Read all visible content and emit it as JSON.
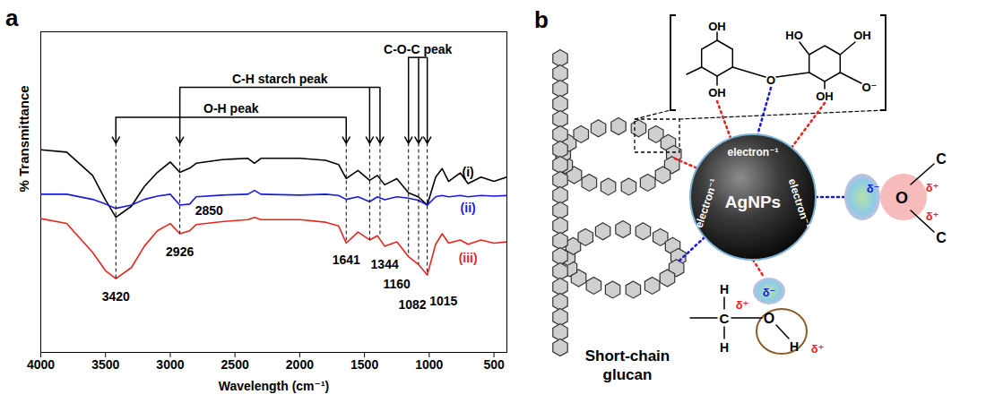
{
  "chart_data": {
    "type": "line",
    "panel_label": "a",
    "x_label": "Wavelength (cm⁻¹)",
    "y_label": "% Transmittance",
    "x": [
      4000,
      3800,
      3600,
      3500,
      3420,
      3300,
      3200,
      3100,
      3000,
      2926,
      2850,
      2800,
      2600,
      2400,
      2350,
      2300,
      2000,
      1800,
      1700,
      1641,
      1550,
      1460,
      1400,
      1344,
      1250,
      1160,
      1082,
      1015,
      950,
      900,
      850,
      760,
      700,
      600,
      500,
      400
    ],
    "series": [
      {
        "name": "(i)",
        "color": "#000000",
        "values": [
          94.8,
          93.7,
          82.8,
          71.3,
          63.2,
          68.4,
          77.6,
          84.2,
          89.1,
          84.2,
          86.2,
          88.5,
          90.2,
          90.8,
          88.5,
          90.8,
          90.8,
          89.9,
          87.9,
          81.3,
          85.1,
          80.5,
          82.8,
          78.4,
          81.3,
          74.7,
          72.7,
          69.0,
          82.0,
          86.0,
          80.0,
          84.0,
          79.0,
          82.0,
          80.0,
          82.0
        ]
      },
      {
        "name": "(ii)",
        "color": "#1a1adb",
        "values": [
          74.0,
          74.0,
          71.6,
          69.4,
          67.4,
          68.9,
          71.6,
          73.1,
          74.0,
          68.9,
          69.4,
          72.8,
          73.6,
          74.0,
          75.8,
          74.0,
          73.6,
          74.0,
          73.4,
          71.6,
          72.8,
          70.5,
          72.8,
          71.4,
          72.8,
          72.2,
          71.1,
          68.9,
          72.8,
          73.4,
          72.8,
          73.4,
          72.8,
          73.4,
          73.1,
          73.4
        ]
      },
      {
        "name": "(iii)",
        "color": "#e5261f",
        "values": [
          62.6,
          60.3,
          46.8,
          38.2,
          34.5,
          39.7,
          49.7,
          56.9,
          60.3,
          55.5,
          56.9,
          59.8,
          61.2,
          62.1,
          63.2,
          62.1,
          62.1,
          60.9,
          59.2,
          51.1,
          56.3,
          52.6,
          54.6,
          49.7,
          51.7,
          44.8,
          41.1,
          36.2,
          50.6,
          55.5,
          51.1,
          52.6,
          50.6,
          52.6,
          51.1,
          51.7
        ]
      }
    ],
    "xlim": [
      4000,
      400
    ],
    "xticks": [
      4000,
      3500,
      3000,
      2500,
      2000,
      1500,
      1000,
      500
    ],
    "ylim": [
      0,
      150
    ],
    "tick_labels": "x",
    "peak_groups": [
      {
        "label": "O-H peak",
        "peaks": [
          3420,
          1641
        ]
      },
      {
        "label": "C-H starch peak",
        "peaks": [
          2926,
          1460,
          1380
        ]
      },
      {
        "label": "C-O-C peak",
        "peaks": [
          1160,
          1082,
          1015
        ]
      }
    ],
    "annotations": [
      {
        "text": "3420",
        "x": 3420,
        "y": 26
      },
      {
        "text": "2926",
        "x": 2926,
        "y": 47
      },
      {
        "text": "2850",
        "x": 2700,
        "y": 66
      },
      {
        "text": "1641",
        "x": 1641,
        "y": 43
      },
      {
        "text": "1344",
        "x": 1344,
        "y": 41
      },
      {
        "text": "1160",
        "x": 1250,
        "y": 32
      },
      {
        "text": "1082",
        "x": 1130,
        "y": 22
      },
      {
        "text": "1015",
        "x": 890,
        "y": 24
      }
    ]
  },
  "diagram": {
    "panel_label": "b",
    "nanoparticle": {
      "label": "AgNPs",
      "surface_labels": [
        "electron⁻¹",
        "electron⁻¹",
        "electron⁻¹"
      ]
    },
    "glucan": {
      "label": "Short-chain glucan"
    },
    "glucose_unit": {
      "labels": [
        "OH",
        "OH",
        "O",
        "HO",
        "OH",
        "OH",
        "O⁻"
      ]
    },
    "ether_group": {
      "atoms": [
        "O",
        "C",
        "C"
      ],
      "charges": [
        "δ⁻",
        "δ⁺",
        "δ⁺"
      ]
    },
    "hydroxyl_group": {
      "atoms": [
        "C",
        "H",
        "H",
        "O",
        "H"
      ],
      "charges": [
        "δ⁺",
        "δ⁻",
        "δ⁺"
      ]
    }
  }
}
